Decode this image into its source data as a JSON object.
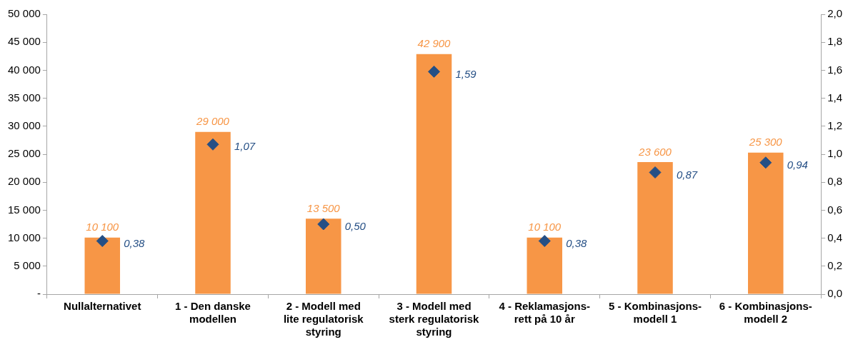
{
  "chart_data": {
    "type": "bar",
    "categories": [
      "Nullalternativet",
      "1 - Den danske modellen",
      "2 - Modell med lite regulatorisk styring",
      "3 - Modell med sterk regulatorisk styring",
      "4 - Reklamasjons-rett på 10 år",
      "5 - Kombinasjons-modell 1",
      "6 - Kombinasjons-modell 2"
    ],
    "series": [
      {
        "color": "#f79646",
        "values": [
          10100,
          29000,
          13500,
          42900,
          10100,
          23600,
          25300
        ],
        "value_labels": [
          "10 100",
          "29 000",
          "13 500",
          "42 900",
          "10 100",
          "23 600",
          "25 300"
        ]
      },
      {
        "type": "scatter",
        "axis": "y2",
        "color": "#254f85",
        "marker": "diamond",
        "values": [
          0.38,
          1.07,
          0.5,
          1.59,
          0.38,
          0.87,
          0.94
        ],
        "value_labels": [
          "0,38",
          "1,07",
          "0,50",
          "1,59",
          "0,38",
          "0,87",
          "0,94"
        ]
      }
    ],
    "ylim": [
      0,
      50000
    ],
    "yticks": [
      {
        "value": 0,
        "label": "-"
      },
      {
        "value": 5000,
        "label": "5 000"
      },
      {
        "value": 10000,
        "label": "10 000"
      },
      {
        "value": 15000,
        "label": "15 000"
      },
      {
        "value": 20000,
        "label": "20 000"
      },
      {
        "value": 25000,
        "label": "25 000"
      },
      {
        "value": 30000,
        "label": "30 000"
      },
      {
        "value": 35000,
        "label": "35 000"
      },
      {
        "value": 40000,
        "label": "40 000"
      },
      {
        "value": 45000,
        "label": "45 000"
      },
      {
        "value": 50000,
        "label": "50 000"
      }
    ],
    "y2lim": [
      0,
      2
    ],
    "y2ticks": [
      {
        "value": 0,
        "label": "0,0"
      },
      {
        "value": 0.2,
        "label": "0,2"
      },
      {
        "value": 0.4,
        "label": "0,4"
      },
      {
        "value": 0.6,
        "label": "0,6"
      },
      {
        "value": 0.8,
        "label": "0,8"
      },
      {
        "value": 1,
        "label": "1,0"
      },
      {
        "value": 1.2,
        "label": "1,2"
      },
      {
        "value": 1.4,
        "label": "1,4"
      },
      {
        "value": 1.6,
        "label": "1,6"
      },
      {
        "value": 1.8,
        "label": "1,8"
      },
      {
        "value": 2,
        "label": "2,0"
      }
    ],
    "grid": false,
    "legend": false
  }
}
